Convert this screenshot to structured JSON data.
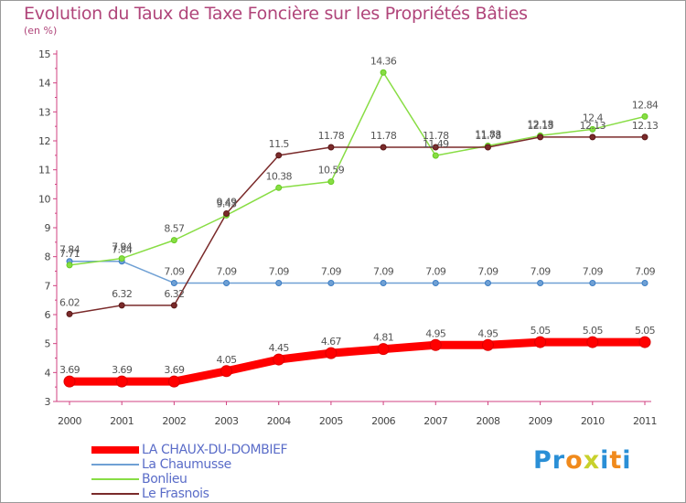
{
  "title": "Evolution du Taux de Taxe Foncière sur les Propriétés Bâties",
  "subtitle": "(en %)",
  "logo": {
    "letters": [
      "P",
      "r",
      "o",
      "x",
      "i",
      "t",
      "i"
    ],
    "colors": [
      "#2a8fd6",
      "#2a8fd6",
      "#f08a1c",
      "#c8d12c",
      "#2a8fd6",
      "#f08a1c",
      "#2a8fd6"
    ]
  },
  "chart_data": {
    "type": "line",
    "title": "Evolution du Taux de Taxe Foncière sur les Propriétés Bâties",
    "ylabel": "(en %)",
    "xlabel": "",
    "ylim": [
      3,
      15
    ],
    "yticks": [
      "3",
      "4",
      "5",
      "6",
      "7",
      "8",
      "9",
      "10",
      "11",
      "12",
      "13",
      "14",
      "15"
    ],
    "categories": [
      "2000",
      "2001",
      "2002",
      "2003",
      "2004",
      "2005",
      "2006",
      "2007",
      "2008",
      "2009",
      "2010",
      "2011"
    ],
    "grid": false,
    "series": [
      {
        "name": "LA CHAUX-DU-DOMBIEF",
        "color": "#ff0000",
        "marker": "#dd0000",
        "width": 9,
        "values": [
          3.69,
          3.69,
          3.69,
          4.05,
          4.45,
          4.67,
          4.81,
          4.95,
          4.95,
          5.05,
          5.05,
          5.05
        ],
        "labels": [
          "3.69",
          "3.69",
          "3.69",
          "4.05",
          "4.45",
          "4.67",
          "4.81",
          "4.95",
          "4.95",
          "5.05",
          "5.05",
          "5.05"
        ]
      },
      {
        "name": "La Chaumusse",
        "color": "#6fa0d4",
        "marker": "#3b7dc4",
        "width": 1.5,
        "values": [
          7.84,
          7.84,
          7.09,
          7.09,
          7.09,
          7.09,
          7.09,
          7.09,
          7.09,
          7.09,
          7.09,
          7.09
        ],
        "labels": [
          "7.84",
          "7.84",
          "7.09",
          "7.09",
          "7.09",
          "7.09",
          "7.09",
          "7.09",
          "7.09",
          "7.09",
          "7.09",
          "7.09"
        ]
      },
      {
        "name": "Bonlieu",
        "color": "#88dd44",
        "marker": "#66cc22",
        "width": 1.5,
        "values": [
          7.71,
          7.94,
          8.57,
          9.43,
          10.38,
          10.59,
          14.36,
          11.49,
          11.83,
          12.18,
          12.4,
          12.84
        ],
        "labels": [
          "7.71",
          "7.94",
          "8.57",
          "9.43",
          "10.38",
          "10.59",
          "14.36",
          "11.49",
          "11.83",
          "12.18",
          "12.4",
          "12.84"
        ]
      },
      {
        "name": "Le Frasnois",
        "color": "#7a2a2a",
        "marker": "#5a1818",
        "width": 1.5,
        "values": [
          6.02,
          6.32,
          6.32,
          9.49,
          11.5,
          11.78,
          11.78,
          11.78,
          11.78,
          12.13,
          12.13,
          12.13
        ],
        "labels": [
          "6.02",
          "6.32",
          "6.32",
          "9.49",
          "11.5",
          "11.78",
          "11.78",
          "11.78",
          "11.78",
          "12.13",
          "12.13",
          "12.13"
        ]
      }
    ]
  }
}
